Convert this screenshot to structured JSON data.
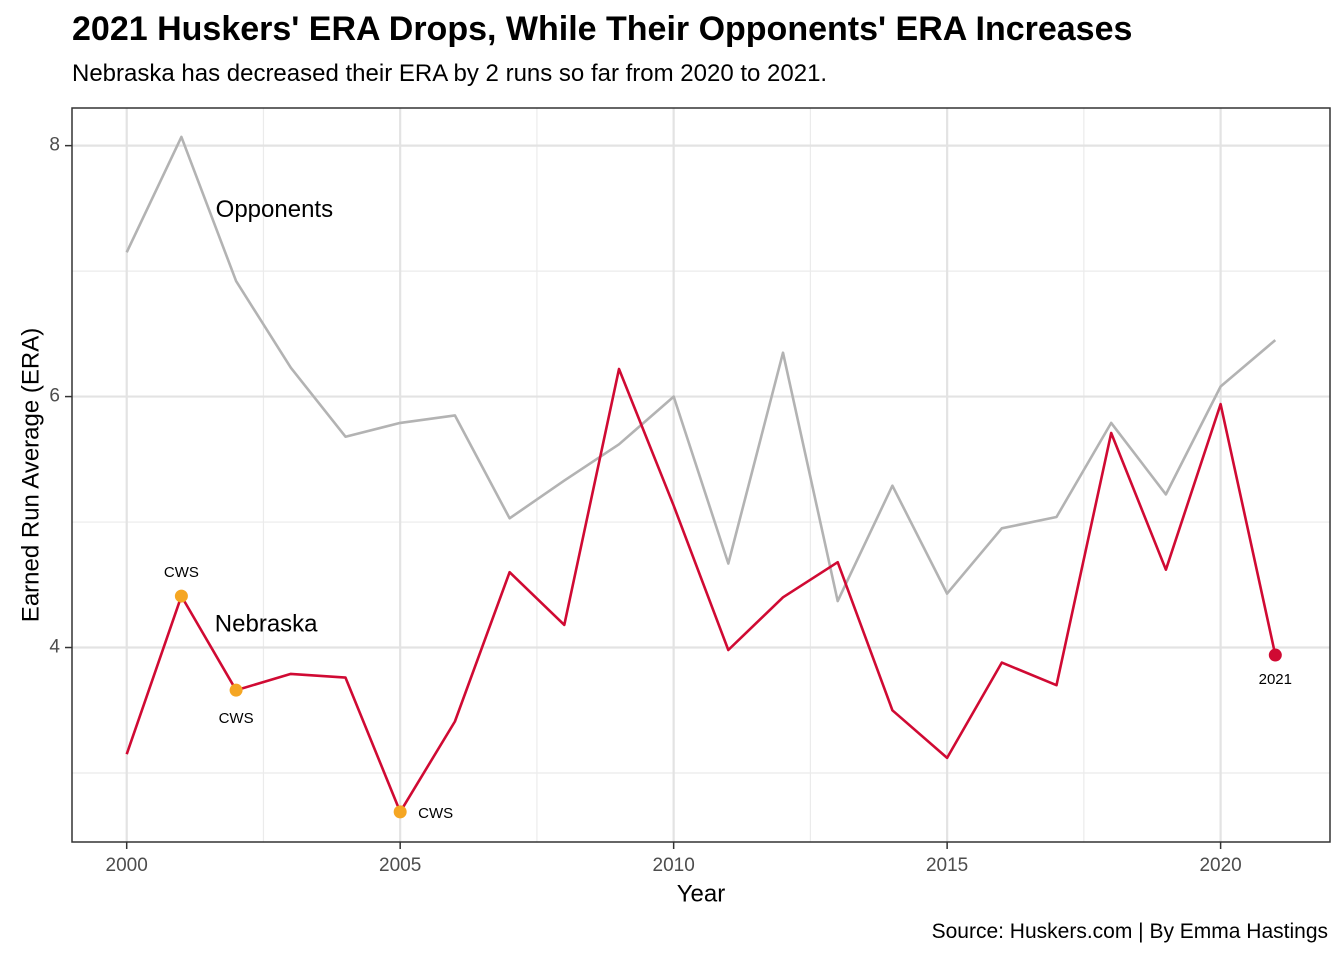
{
  "chart_data": {
    "type": "line",
    "title": "2021 Huskers' ERA Drops, While Their Opponents' ERA Increases",
    "subtitle": "Nebraska has decreased their ERA by 2 runs so far from 2020 to 2021.",
    "caption": "Source: Huskers.com | By Emma Hastings",
    "xlabel": "Year",
    "ylabel": "Earned Run Average (ERA)",
    "xlim": [
      1999,
      2022
    ],
    "ylim": [
      2.45,
      8.3
    ],
    "xticks": [
      2000,
      2005,
      2010,
      2015,
      2020
    ],
    "yticks": [
      4,
      6,
      8
    ],
    "grid": true,
    "x": [
      2000,
      2001,
      2002,
      2003,
      2004,
      2005,
      2006,
      2007,
      2008,
      2009,
      2010,
      2011,
      2012,
      2013,
      2014,
      2015,
      2016,
      2017,
      2018,
      2019,
      2020,
      2021
    ],
    "series": [
      {
        "name": "Opponents",
        "color": "#b3b3b3",
        "values": [
          7.15,
          8.07,
          6.92,
          6.23,
          5.68,
          5.79,
          5.85,
          5.03,
          5.33,
          5.62,
          6.0,
          4.67,
          6.35,
          4.37,
          5.29,
          4.43,
          4.95,
          5.04,
          5.79,
          5.22,
          6.08,
          6.45
        ]
      },
      {
        "name": "Nebraska",
        "color": "#d00a33",
        "values": [
          3.15,
          4.41,
          3.66,
          3.79,
          3.76,
          2.69,
          3.41,
          4.6,
          4.18,
          6.22,
          5.13,
          3.98,
          4.4,
          4.68,
          3.5,
          3.12,
          3.88,
          3.7,
          5.71,
          4.62,
          5.94,
          3.94
        ]
      }
    ],
    "highlights": [
      {
        "x": 2001,
        "y": 4.41,
        "label": "CWS",
        "color": "#f5a623"
      },
      {
        "x": 2002,
        "y": 3.66,
        "label": "CWS",
        "color": "#f5a623"
      },
      {
        "x": 2005,
        "y": 2.69,
        "label": "CWS",
        "color": "#f5a623"
      },
      {
        "x": 2021,
        "y": 3.94,
        "label": "2021",
        "color": "#d00a33"
      }
    ],
    "annotations": [
      {
        "text": "Opponents",
        "x": 2002.7,
        "y": 7.48
      },
      {
        "text": "Nebraska",
        "x": 2002.55,
        "y": 4.18
      }
    ]
  }
}
